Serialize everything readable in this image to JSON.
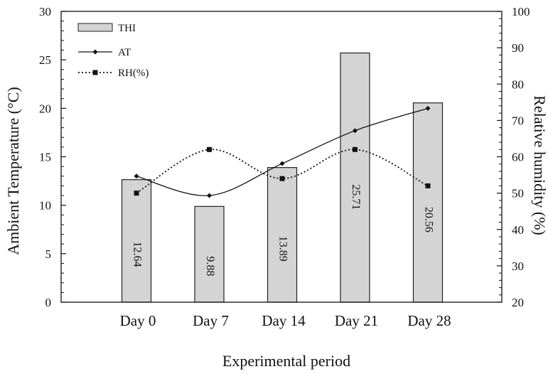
{
  "chart_data": {
    "type": "bar",
    "categories": [
      "Day 0",
      "Day 7",
      "Day 14",
      "Day 21",
      "Day 28"
    ],
    "xlabel": "Experimental period",
    "ylabel": "Ambient Temperature (°C)",
    "y2label": "Relative humidity (%)",
    "ylim": [
      0,
      30
    ],
    "y2lim": [
      20,
      100
    ],
    "yticks": [
      "0",
      "5",
      "10",
      "15",
      "20",
      "25",
      "30"
    ],
    "y2ticks": [
      "20",
      "30",
      "40",
      "50",
      "60",
      "70",
      "80",
      "90",
      "100"
    ],
    "grid": false,
    "legend_position": "top-left",
    "series": [
      {
        "name": "THI",
        "kind": "bar",
        "axis": "left",
        "values": [
          12.64,
          9.88,
          13.89,
          25.71,
          20.56
        ],
        "labels": [
          "12.64",
          "9.88",
          "13.89",
          "25.71",
          "20.56"
        ],
        "color": "#d4d4d4"
      },
      {
        "name": "AT",
        "kind": "line",
        "axis": "left",
        "style": "solid",
        "marker": "diamond",
        "values": [
          13,
          11,
          14.3,
          17.7,
          20
        ],
        "color": "#111111"
      },
      {
        "name": "RH(%)",
        "kind": "line",
        "axis": "right",
        "style": "dotted",
        "marker": "square",
        "values": [
          50,
          62,
          54,
          62,
          52
        ],
        "color": "#111111"
      }
    ]
  }
}
